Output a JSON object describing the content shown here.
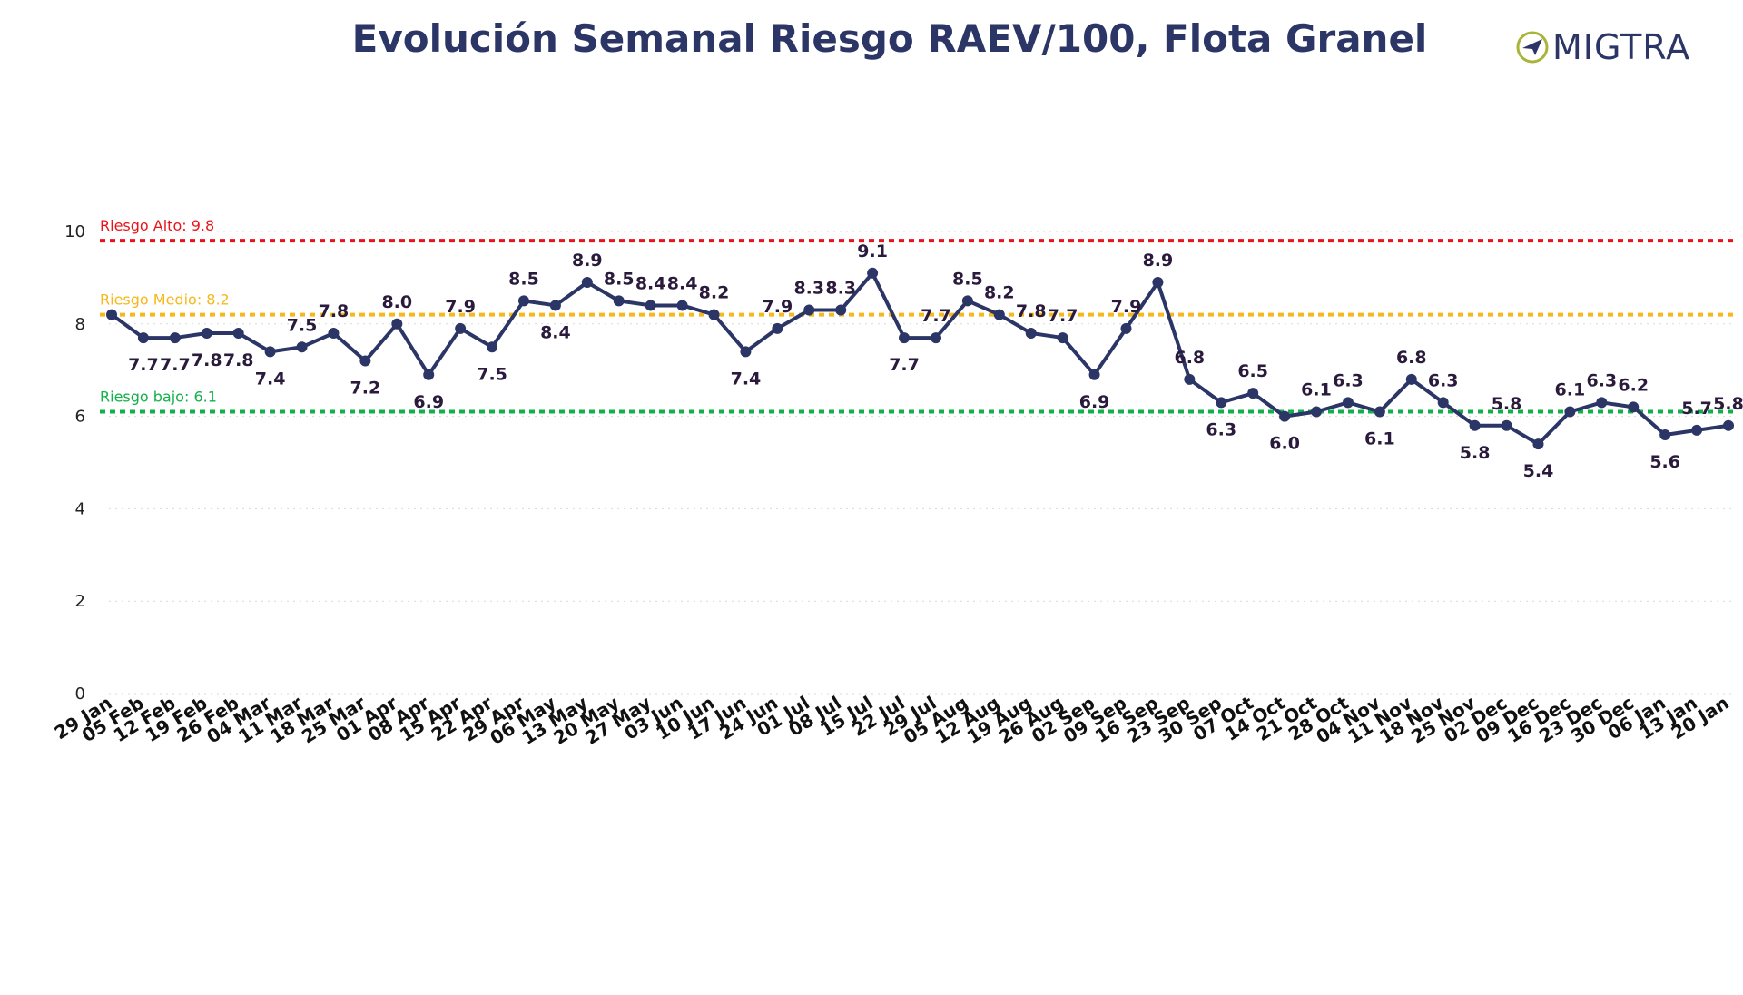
{
  "title": "Evolución Semanal Riesgo RAEV/100, Flota Granel",
  "logo": {
    "text": "MIGTRA",
    "mark": "paper-plane-icon"
  },
  "chart_data": {
    "type": "line",
    "ylim": [
      0,
      10
    ],
    "yticks": [
      "0",
      "2",
      "4",
      "6",
      "8",
      "10"
    ],
    "grid": true,
    "categories": [
      "29 Jan",
      "05 Feb",
      "12 Feb",
      "19 Feb",
      "26 Feb",
      "04 Mar",
      "11 Mar",
      "18 Mar",
      "25 Mar",
      "01 Apr",
      "08 Apr",
      "15 Apr",
      "22 Apr",
      "29 Apr",
      "06 May",
      "13 May",
      "20 May",
      "27 May",
      "03 Jun",
      "10 Jun",
      "17 Jun",
      "24 Jun",
      "01 Jul",
      "08 Jul",
      "15 Jul",
      "22 Jul",
      "29 Jul",
      "05 Aug",
      "12 Aug",
      "19 Aug",
      "26 Aug",
      "02 Sep",
      "09 Sep",
      "16 Sep",
      "23 Sep",
      "30 Sep",
      "07 Oct",
      "14 Oct",
      "21 Oct",
      "28 Oct",
      "04 Nov",
      "11 Nov",
      "18 Nov",
      "25 Nov",
      "02 Dec",
      "09 Dec",
      "16 Dec",
      "23 Dec",
      "30 Dec",
      "06 Jan",
      "13 Jan",
      "20 Jan"
    ],
    "values": [
      8.2,
      7.7,
      7.7,
      7.8,
      7.8,
      7.4,
      7.5,
      7.8,
      7.2,
      8.0,
      6.9,
      7.9,
      7.5,
      8.5,
      8.4,
      8.9,
      8.5,
      8.4,
      8.4,
      8.2,
      7.4,
      7.9,
      8.3,
      8.3,
      9.1,
      7.7,
      7.7,
      8.5,
      8.2,
      7.8,
      7.7,
      6.9,
      7.9,
      8.9,
      6.8,
      6.3,
      6.5,
      6.0,
      6.1,
      6.3,
      6.1,
      6.8,
      6.3,
      5.8,
      5.8,
      5.4,
      6.1,
      6.3,
      6.2,
      5.6,
      5.7,
      5.8
    ],
    "labels": [
      "",
      "7.7",
      "7.7",
      "7.8",
      "7.8",
      "7.4",
      "7.5",
      "7.8",
      "7.2",
      "8.0",
      "6.9",
      "7.9",
      "7.5",
      "8.5",
      "8.4",
      "8.9",
      "8.5",
      "8.4",
      "8.4",
      "8.2",
      "7.4",
      "7.9",
      "8.3",
      "8.3",
      "9.1",
      "7.7",
      "7.7",
      "8.5",
      "8.2",
      "7.8",
      "7.7",
      "6.9",
      "7.9",
      "8.9",
      "6.8",
      "6.3",
      "6.5",
      "6.0",
      "6.1",
      "6.3",
      "6.1",
      "6.8",
      "6.3",
      "5.8",
      "5.8",
      "5.4",
      "6.1",
      "6.3",
      "6.2",
      "5.6",
      "5.7",
      "5.8"
    ],
    "label_pos": [
      "",
      "below",
      "below",
      "below",
      "below",
      "below",
      "above",
      "above",
      "below",
      "above",
      "below",
      "above",
      "below",
      "above",
      "below",
      "above",
      "above",
      "above",
      "above",
      "above",
      "below",
      "above",
      "above",
      "above",
      "above",
      "below",
      "above",
      "above",
      "above",
      "above",
      "above",
      "below",
      "above",
      "above",
      "above",
      "below",
      "above",
      "below",
      "above",
      "above",
      "below",
      "above",
      "above",
      "below",
      "above",
      "below",
      "above",
      "above",
      "above",
      "below",
      "above",
      "above"
    ],
    "line_color": "#2b3566",
    "reference_lines": [
      {
        "name": "Riesgo Alto: 9.8",
        "value": 9.8,
        "color": "#e8141b"
      },
      {
        "name": "Riesgo Medio: 8.2",
        "value": 8.2,
        "color": "#f6b81a"
      },
      {
        "name": "Riesgo bajo: 6.1",
        "value": 6.1,
        "color": "#12b04a"
      }
    ]
  }
}
